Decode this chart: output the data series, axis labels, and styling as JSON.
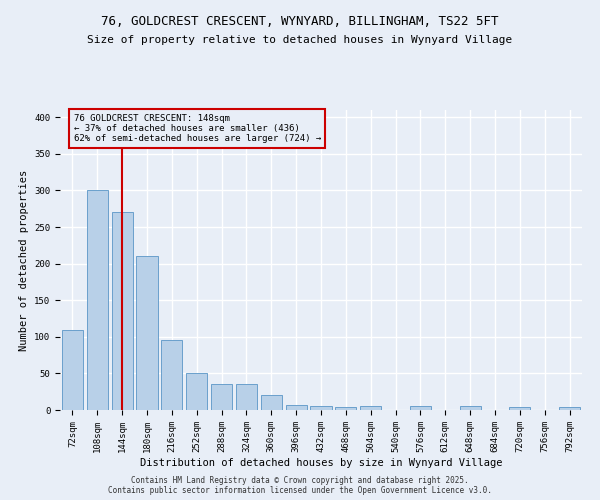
{
  "title_line1": "76, GOLDCREST CRESCENT, WYNYARD, BILLINGHAM, TS22 5FT",
  "title_line2": "Size of property relative to detached houses in Wynyard Village",
  "xlabel": "Distribution of detached houses by size in Wynyard Village",
  "ylabel": "Number of detached properties",
  "categories": [
    "72sqm",
    "108sqm",
    "144sqm",
    "180sqm",
    "216sqm",
    "252sqm",
    "288sqm",
    "324sqm",
    "360sqm",
    "396sqm",
    "432sqm",
    "468sqm",
    "504sqm",
    "540sqm",
    "576sqm",
    "612sqm",
    "648sqm",
    "684sqm",
    "720sqm",
    "756sqm",
    "792sqm"
  ],
  "values": [
    110,
    300,
    270,
    210,
    95,
    50,
    35,
    35,
    20,
    7,
    5,
    4,
    5,
    0,
    6,
    0,
    5,
    0,
    4,
    0,
    4
  ],
  "bar_color": "#b8d0e8",
  "bar_edge_color": "#6aa0cc",
  "property_bin_index": 2,
  "vline_color": "#cc0000",
  "annotation_text": "76 GOLDCREST CRESCENT: 148sqm\n← 37% of detached houses are smaller (436)\n62% of semi-detached houses are larger (724) →",
  "annotation_box_color": "#cc0000",
  "ylim": [
    0,
    410
  ],
  "yticks": [
    0,
    50,
    100,
    150,
    200,
    250,
    300,
    350,
    400
  ],
  "footnote": "Contains HM Land Registry data © Crown copyright and database right 2025.\nContains public sector information licensed under the Open Government Licence v3.0.",
  "bg_color": "#e8eef7",
  "grid_color": "#ffffff",
  "title_fontsize": 9,
  "subtitle_fontsize": 8,
  "axis_fontsize": 7.5,
  "tick_fontsize": 6.5,
  "footnote_fontsize": 5.5
}
